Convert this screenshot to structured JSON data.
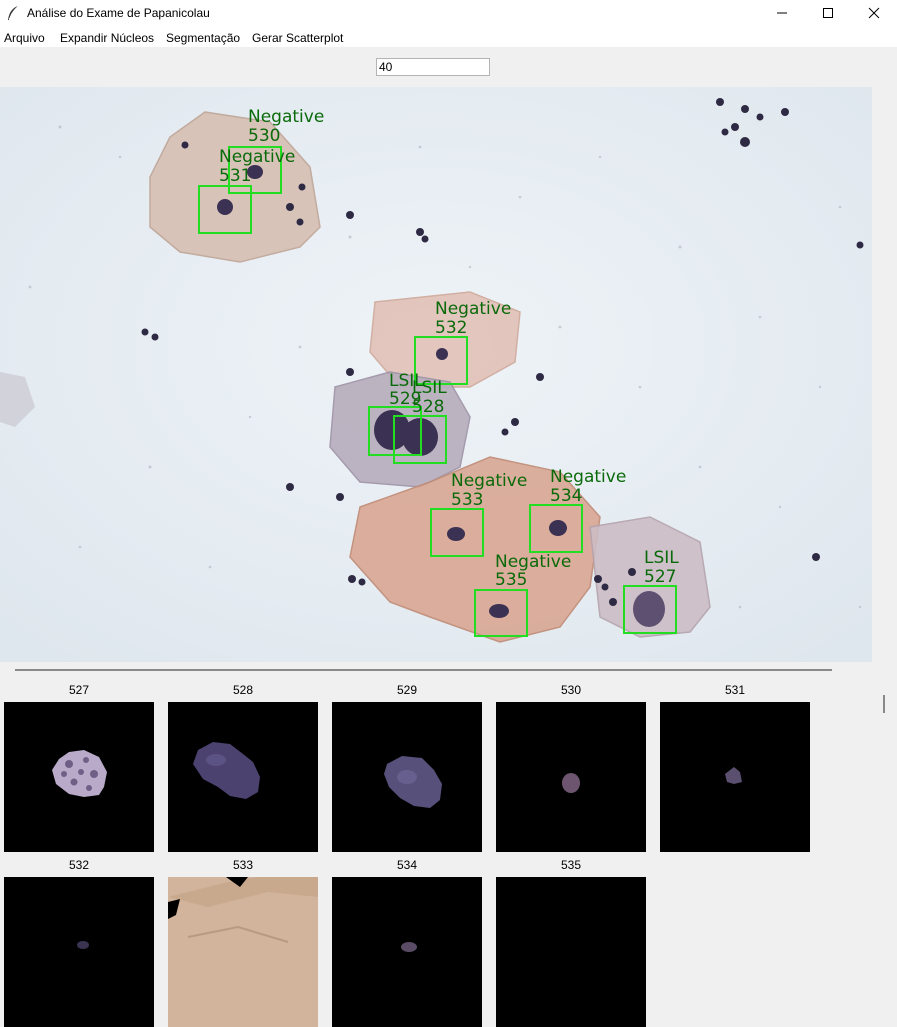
{
  "window": {
    "title": "Análise do Exame de Papanicolau",
    "icon": "feather-icon",
    "controls": [
      "minimize-icon",
      "maximize-icon",
      "close-icon"
    ]
  },
  "menu": {
    "items": [
      "Arquivo",
      "Expandir Núcleos",
      "Segmentação",
      "Gerar Scatterplot"
    ]
  },
  "input": {
    "value": "40"
  },
  "detections": [
    {
      "label": "Negative",
      "id": "530"
    },
    {
      "label": "Negative",
      "id": "531"
    },
    {
      "label": "Negative",
      "id": "532"
    },
    {
      "label": "LSIL",
      "id": "529"
    },
    {
      "label": "LSIL",
      "id": "528"
    },
    {
      "label": "Negative",
      "id": "533"
    },
    {
      "label": "Negative",
      "id": "534"
    },
    {
      "label": "Negative",
      "id": "535"
    },
    {
      "label": "LSIL",
      "id": "527"
    }
  ],
  "thumbnails": [
    "527",
    "528",
    "529",
    "530",
    "531",
    "532",
    "533",
    "534",
    "535"
  ],
  "colors": {
    "detection_box": "#22dd22",
    "detection_text": "#0a6a0a"
  }
}
